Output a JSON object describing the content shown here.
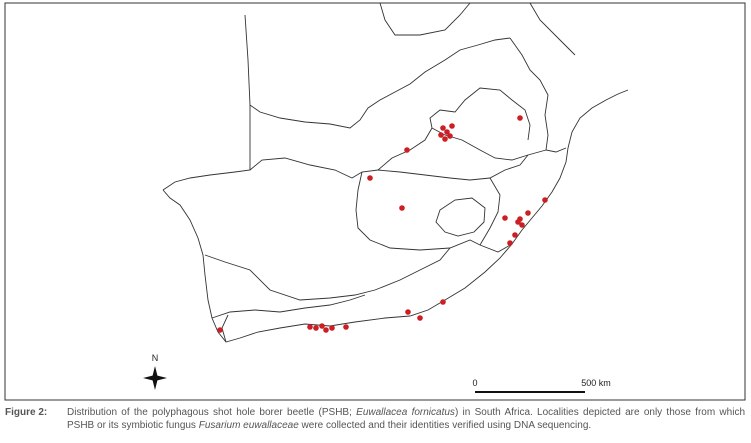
{
  "map": {
    "compass": "N",
    "scale_bar": {
      "start": "0",
      "end": "500 km"
    }
  },
  "caption": {
    "label": "Figure 2:",
    "parts": [
      "Distribution of the polyphagous shot hole borer beetle (PSHB; ",
      "Euwallacea fornicatus",
      ") in South Africa. Localities depicted are only those from which PSHB or its symbiotic fungus ",
      "Fusarium euwallaceae",
      " were collected and their identities verified using DNA sequencing."
    ]
  }
}
